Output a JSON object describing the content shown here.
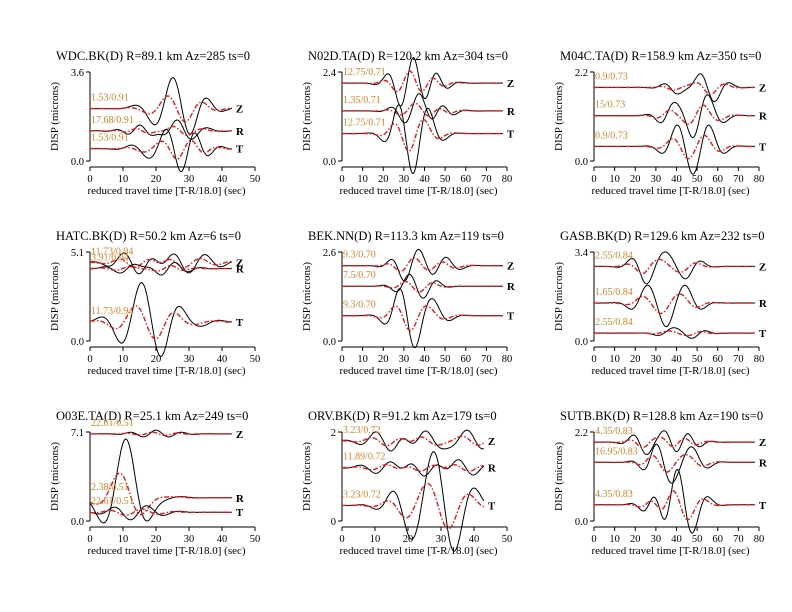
{
  "chart_data": {
    "type": "line",
    "layout": "3x3 grid of seismogram panels",
    "series_styles": {
      "observed": "#000000",
      "synthetic": "#e31a1c",
      "annotation": "#d9822b"
    },
    "xlabel": "reduced travel time [T-R/18.0] (sec)",
    "ylabel": "DISP (microns)",
    "panels": [
      {
        "title": "WDC.BK(D) R=89.1 km Az=285 ts=0",
        "ytop": "3.6",
        "ybottom": "0.0",
        "xlim": [
          0,
          50
        ],
        "xticks": [
          "0",
          "10",
          "20",
          "30",
          "40",
          "50"
        ],
        "tmax": 43,
        "traces": [
          {
            "comp": "Z",
            "ann": "1.53/0.91",
            "y": 2.12,
            "events": [
              [
                25,
                0.9,
                0.16
              ],
              [
                30,
                -0.5,
                0.2
              ]
            ]
          },
          {
            "comp": "R",
            "ann": "17.68/0.91",
            "y": 1.22,
            "events": [
              [
                18,
                -0.2,
                0.3
              ],
              [
                26,
                0.45,
                0.2
              ]
            ]
          },
          {
            "comp": "T",
            "ann": "1.53/0.91",
            "y": 0.5,
            "events": [
              [
                22,
                0.6,
                0.2
              ],
              [
                28,
                -0.6,
                0.25
              ]
            ]
          }
        ]
      },
      {
        "title": "N02D.TA(D) R=120.2 km Az=304 ts=0",
        "ytop": "2.4",
        "ybottom": "0.0",
        "xlim": [
          0,
          80
        ],
        "xticks": [
          "0",
          "10",
          "20",
          "30",
          "40",
          "50",
          "60",
          "70",
          "80"
        ],
        "tmax": 78,
        "traces": [
          {
            "comp": "Z",
            "ann": "12.75/0.71",
            "y": 2.1,
            "events": [
              [
                28,
                -0.35,
                0.15
              ],
              [
                35,
                0.5,
                0.15
              ],
              [
                45,
                0.25,
                0.15
              ]
            ]
          },
          {
            "comp": "R",
            "ann": "1.35/0.71",
            "y": 1.35,
            "events": [
              [
                30,
                -0.15,
                0.15
              ],
              [
                38,
                0.4,
                0.12
              ],
              [
                48,
                0.2,
                0.15
              ]
            ]
          },
          {
            "comp": "T",
            "ann": "12.75/0.71",
            "y": 0.74,
            "events": [
              [
                28,
                0.45,
                0.12
              ],
              [
                34,
                -0.75,
                0.12
              ],
              [
                42,
                0.35,
                0.12
              ]
            ]
          }
        ]
      },
      {
        "title": "M04C.TA(D) R=158.9 km Az=350 ts=0",
        "ytop": "2.2",
        "ybottom": "0.0",
        "xlim": [
          0,
          80
        ],
        "xticks": [
          "0",
          "10",
          "20",
          "30",
          "40",
          "50",
          "60",
          "70",
          "80"
        ],
        "tmax": 78,
        "traces": [
          {
            "comp": "Z",
            "ann": "0.9/0.73",
            "y": 1.82,
            "events": [
              [
                40,
                -0.15,
                0.15
              ],
              [
                52,
                0.25,
                0.12
              ],
              [
                58,
                -0.25,
                0.12
              ]
            ]
          },
          {
            "comp": "R",
            "ann": "15/0.73",
            "y": 1.12,
            "events": [
              [
                38,
                0.3,
                0.15
              ],
              [
                48,
                -0.4,
                0.15
              ],
              [
                56,
                0.35,
                0.12
              ]
            ]
          },
          {
            "comp": "T",
            "ann": "0.9/0.73",
            "y": 0.36,
            "events": [
              [
                40,
                0.35,
                0.12
              ],
              [
                48,
                -0.4,
                0.12
              ],
              [
                56,
                0.35,
                0.12
              ]
            ]
          }
        ]
      },
      {
        "title": "HATC.BK(D) R=50.2 km Az=6 ts=0",
        "ytop": "5.1",
        "ybottom": "0.0",
        "xlim": [
          0,
          50
        ],
        "xticks": [
          "0",
          "10",
          "20",
          "30",
          "40",
          "50"
        ],
        "tmax": 43,
        "traces": [
          {
            "comp": "Z",
            "ann": "11.73/0.94",
            "y": 4.5,
            "events": [
              [
                15,
                -0.8,
                0.2
              ],
              [
                25,
                0.6,
                0.2
              ],
              [
                35,
                0.3,
                0.2
              ]
            ]
          },
          {
            "comp": "R",
            "ann": "3.91/0.94",
            "y": 4.15,
            "events": [
              [
                14,
                0.4,
                0.2
              ],
              [
                22,
                -0.4,
                0.25
              ]
            ]
          },
          {
            "comp": "T",
            "ann": "11.73/0.94",
            "y": 1.1,
            "events": [
              [
                15,
                2.0,
                0.16
              ],
              [
                22,
                -1.0,
                0.2
              ],
              [
                30,
                0.3,
                0.2
              ]
            ]
          }
        ]
      },
      {
        "title": "BEK.NN(D) R=113.3 km Az=119 ts=0",
        "ytop": "2.6",
        "ybottom": "0.0",
        "xlim": [
          0,
          80
        ],
        "xticks": [
          "0",
          "10",
          "20",
          "30",
          "40",
          "50",
          "60",
          "70",
          "80"
        ],
        "tmax": 78,
        "traces": [
          {
            "comp": "Z",
            "ann": "9.3/0.70",
            "y": 2.2,
            "events": [
              [
                30,
                -0.3,
                0.15
              ],
              [
                38,
                0.35,
                0.12
              ],
              [
                50,
                0.25,
                0.12
              ]
            ]
          },
          {
            "comp": "R",
            "ann": "7.5/0.70",
            "y": 1.6,
            "events": [
              [
                32,
                0.25,
                0.15
              ],
              [
                40,
                -0.25,
                0.15
              ]
            ]
          },
          {
            "comp": "T",
            "ann": "9.3/0.70",
            "y": 0.74,
            "events": [
              [
                28,
                0.5,
                0.12
              ],
              [
                35,
                -0.65,
                0.12
              ],
              [
                45,
                0.3,
                0.12
              ]
            ]
          }
        ]
      },
      {
        "title": "GASB.BK(D) R=129.6 km Az=232 ts=0",
        "ytop": "3.4",
        "ybottom": "0.0",
        "xlim": [
          0,
          80
        ],
        "xticks": [
          "0",
          "10",
          "20",
          "30",
          "40",
          "50",
          "60",
          "70",
          "80"
        ],
        "tmax": 78,
        "traces": [
          {
            "comp": "Z",
            "ann": "2.55/0.84",
            "y": 2.85,
            "events": [
              [
                25,
                -0.6,
                0.13
              ],
              [
                35,
                0.4,
                0.13
              ],
              [
                45,
                -0.4,
                0.13
              ]
            ]
          },
          {
            "comp": "R",
            "ann": "1.65/0.84",
            "y": 1.45,
            "events": [
              [
                25,
                0.5,
                0.12
              ],
              [
                35,
                -0.7,
                0.12
              ],
              [
                45,
                0.5,
                0.12
              ]
            ]
          },
          {
            "comp": "T",
            "ann": "2.55/0.84",
            "y": 0.3,
            "events": [
              [
                38,
                0.2,
                0.12
              ],
              [
                48,
                -0.15,
                0.15
              ]
            ]
          }
        ]
      },
      {
        "title": "O03E.TA(D) R=25.1 km Az=249 ts=0",
        "ytop": "7.1",
        "ybottom": "0.0",
        "xlim": [
          0,
          50
        ],
        "xticks": [
          "0",
          "10",
          "20",
          "30",
          "40",
          "50"
        ],
        "tmax": 43,
        "traces": [
          {
            "comp": "Z",
            "ann": "22.61/0.51",
            "y": 6.95,
            "events": [
              [
                20,
                0.3,
                0.25
              ]
            ]
          },
          {
            "comp": "R",
            "ann": "2.38/0.51",
            "y": 1.85,
            "events": [
              [
                11,
                4.3,
                0.12
              ],
              [
                15,
                -0.6,
                0.2
              ]
            ]
          },
          {
            "comp": "T",
            "ann": "22.61/0.51",
            "y": 0.7,
            "events": [
              [
                12,
                -0.5,
                0.2
              ],
              [
                18,
                0.2,
                0.2
              ]
            ]
          }
        ]
      },
      {
        "title": "ORV.BK(D) R=91.2 km Az=179 ts=0",
        "ytop": "2",
        "ybottom": "0",
        "xlim": [
          0,
          50
        ],
        "xticks": [
          "0",
          "10",
          "20",
          "30",
          "40",
          "50"
        ],
        "tmax": 43,
        "traces": [
          {
            "comp": "Z",
            "ann": "3.23/0.72",
            "y": 1.8,
            "events": [
              [
                15,
                -0.3,
                0.2
              ],
              [
                25,
                0.3,
                0.2
              ],
              [
                38,
                0.25,
                0.2
              ]
            ]
          },
          {
            "comp": "R",
            "ann": "11.89/0.72",
            "y": 1.2,
            "events": [
              [
                15,
                0.2,
                0.2
              ],
              [
                25,
                -0.3,
                0.2
              ],
              [
                35,
                0.25,
                0.2
              ]
            ]
          },
          {
            "comp": "T",
            "ann": "3.23/0.72",
            "y": 0.35,
            "events": [
              [
                20,
                -0.3,
                0.2
              ],
              [
                28,
                0.95,
                0.15
              ],
              [
                34,
                -0.5,
                0.15
              ]
            ]
          }
        ]
      },
      {
        "title": "SUTB.BK(D) R=128.8 km Az=190 ts=0",
        "ytop": "2.2",
        "ybottom": "0.0",
        "xlim": [
          0,
          80
        ],
        "xticks": [
          "0",
          "10",
          "20",
          "30",
          "40",
          "50",
          "60",
          "70",
          "80"
        ],
        "tmax": 78,
        "traces": [
          {
            "comp": "Z",
            "ann": "4.35/0.83",
            "y": 1.95,
            "events": [
              [
                25,
                -0.3,
                0.15
              ],
              [
                35,
                0.25,
                0.15
              ],
              [
                45,
                0.2,
                0.15
              ]
            ]
          },
          {
            "comp": "R",
            "ann": "16.95/0.83",
            "y": 1.45,
            "events": [
              [
                30,
                0.3,
                0.15
              ],
              [
                38,
                -0.35,
                0.12
              ],
              [
                48,
                0.3,
                0.12
              ]
            ]
          },
          {
            "comp": "T",
            "ann": "4.35/0.83",
            "y": 0.4,
            "events": [
              [
                30,
                0.3,
                0.15
              ],
              [
                40,
                0.7,
                0.12
              ],
              [
                48,
                -0.4,
                0.12
              ]
            ]
          }
        ]
      }
    ]
  }
}
